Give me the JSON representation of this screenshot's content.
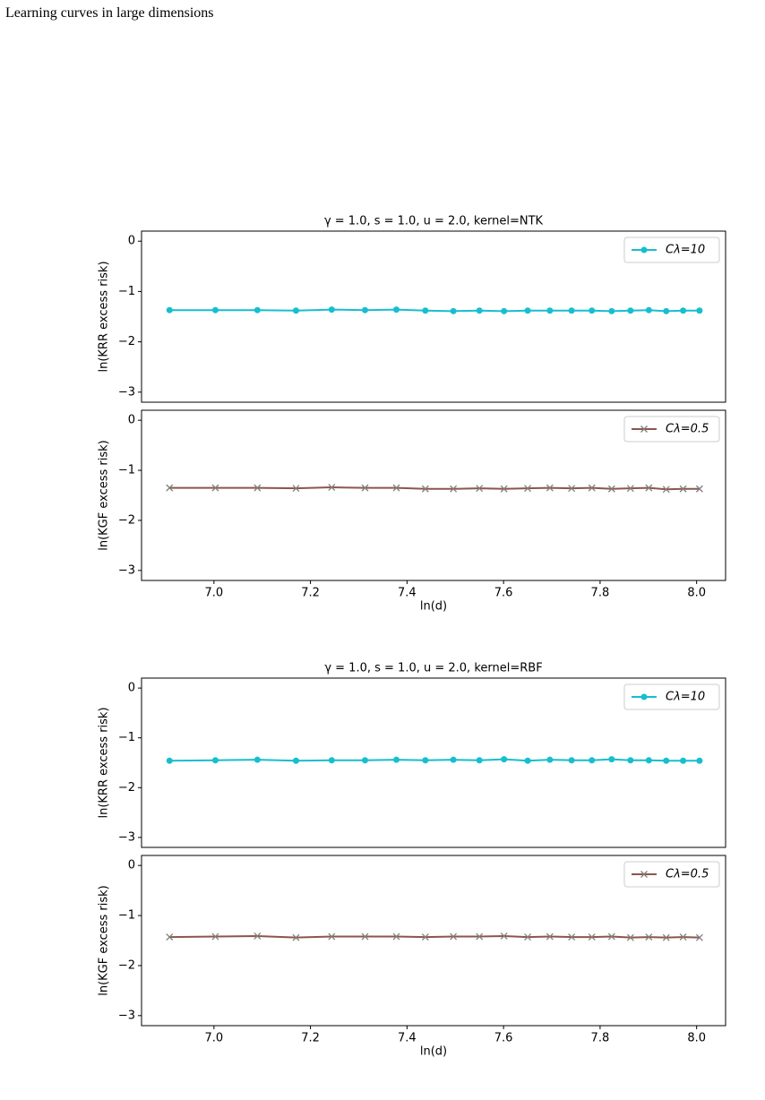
{
  "header": {
    "title": "Learning curves in large dimensions"
  },
  "chart_data": [
    {
      "type": "line",
      "title": "γ = 1.0, s = 1.0, u = 2.0, kernel=NTK",
      "ylabel": "ln(KRR excess risk)",
      "x": [
        6.908,
        7.003,
        7.09,
        7.17,
        7.244,
        7.313,
        7.378,
        7.438,
        7.496,
        7.55,
        7.601,
        7.65,
        7.696,
        7.741,
        7.783,
        7.824,
        7.863,
        7.901,
        7.937,
        7.972,
        8.006
      ],
      "series": [
        {
          "name": "Cλ=10",
          "color": "#17becf",
          "marker": "o",
          "values": [
            -1.37,
            -1.37,
            -1.37,
            -1.38,
            -1.36,
            -1.37,
            -1.36,
            -1.38,
            -1.39,
            -1.38,
            -1.39,
            -1.38,
            -1.38,
            -1.38,
            -1.38,
            -1.39,
            -1.38,
            -1.37,
            -1.39,
            -1.38,
            -1.38
          ]
        }
      ],
      "xlim": [
        6.85,
        8.06
      ],
      "ylim": [
        -3.2,
        0.2
      ],
      "yticks": [
        {
          "value": 0,
          "label": "0"
        },
        {
          "value": -1,
          "label": "−1"
        },
        {
          "value": -2,
          "label": "−2"
        },
        {
          "value": -3,
          "label": "−3"
        }
      ],
      "legend": "upper right"
    },
    {
      "type": "line",
      "ylabel": "ln(KGF excess risk)",
      "xlabel": "ln(d)",
      "x": [
        6.908,
        7.003,
        7.09,
        7.17,
        7.244,
        7.313,
        7.378,
        7.438,
        7.496,
        7.55,
        7.601,
        7.65,
        7.696,
        7.741,
        7.783,
        7.824,
        7.863,
        7.901,
        7.937,
        7.972,
        8.006
      ],
      "series": [
        {
          "name": "Cλ=0.5",
          "color": "#8c564b",
          "marker": "x",
          "marker_color": "#7f7f7f",
          "values": [
            -1.35,
            -1.35,
            -1.35,
            -1.36,
            -1.34,
            -1.35,
            -1.35,
            -1.37,
            -1.37,
            -1.36,
            -1.37,
            -1.36,
            -1.35,
            -1.36,
            -1.35,
            -1.37,
            -1.36,
            -1.35,
            -1.38,
            -1.37,
            -1.37
          ]
        }
      ],
      "xlim": [
        6.85,
        8.06
      ],
      "ylim": [
        -3.2,
        0.2
      ],
      "xticks": [
        {
          "value": 7,
          "label": "7.0"
        },
        7.2,
        7.4,
        7.6,
        7.8,
        {
          "value": 8,
          "label": "8.0"
        }
      ],
      "yticks": [
        {
          "value": 0,
          "label": "0"
        },
        {
          "value": -1,
          "label": "−1"
        },
        {
          "value": -2,
          "label": "−2"
        },
        {
          "value": -3,
          "label": "−3"
        }
      ],
      "legend": "upper right"
    },
    {
      "type": "line",
      "title": "γ = 1.0, s = 1.0, u = 2.0, kernel=RBF",
      "ylabel": "ln(KRR excess risk)",
      "x": [
        6.908,
        7.003,
        7.09,
        7.17,
        7.244,
        7.313,
        7.378,
        7.438,
        7.496,
        7.55,
        7.601,
        7.65,
        7.696,
        7.741,
        7.783,
        7.824,
        7.863,
        7.901,
        7.937,
        7.972,
        8.006
      ],
      "series": [
        {
          "name": "Cλ=10",
          "color": "#17becf",
          "marker": "o",
          "values": [
            -1.46,
            -1.45,
            -1.44,
            -1.46,
            -1.45,
            -1.45,
            -1.44,
            -1.45,
            -1.44,
            -1.45,
            -1.43,
            -1.46,
            -1.44,
            -1.45,
            -1.45,
            -1.43,
            -1.45,
            -1.45,
            -1.46,
            -1.46,
            -1.46
          ]
        }
      ],
      "xlim": [
        6.85,
        8.06
      ],
      "ylim": [
        -3.2,
        0.2
      ],
      "yticks": [
        {
          "value": 0,
          "label": "0"
        },
        {
          "value": -1,
          "label": "−1"
        },
        {
          "value": -2,
          "label": "−2"
        },
        {
          "value": -3,
          "label": "−3"
        }
      ],
      "legend": "upper right"
    },
    {
      "type": "line",
      "ylabel": "ln(KGF excess risk)",
      "xlabel": "ln(d)",
      "x": [
        6.908,
        7.003,
        7.09,
        7.17,
        7.244,
        7.313,
        7.378,
        7.438,
        7.496,
        7.55,
        7.601,
        7.65,
        7.696,
        7.741,
        7.783,
        7.824,
        7.863,
        7.901,
        7.937,
        7.972,
        8.006
      ],
      "series": [
        {
          "name": "Cλ=0.5",
          "color": "#8c564b",
          "marker": "x",
          "marker_color": "#7f7f7f",
          "values": [
            -1.43,
            -1.42,
            -1.41,
            -1.44,
            -1.42,
            -1.42,
            -1.42,
            -1.43,
            -1.42,
            -1.42,
            -1.41,
            -1.43,
            -1.42,
            -1.43,
            -1.43,
            -1.42,
            -1.44,
            -1.43,
            -1.44,
            -1.43,
            -1.44
          ]
        }
      ],
      "xlim": [
        6.85,
        8.06
      ],
      "ylim": [
        -3.2,
        0.2
      ],
      "xticks": [
        {
          "value": 7,
          "label": "7.0"
        },
        7.2,
        7.4,
        7.6,
        7.8,
        {
          "value": 8,
          "label": "8.0"
        }
      ],
      "yticks": [
        {
          "value": 0,
          "label": "0"
        },
        {
          "value": -1,
          "label": "−1"
        },
        {
          "value": -2,
          "label": "−2"
        },
        {
          "value": -3,
          "label": "−3"
        }
      ],
      "legend": "upper right"
    }
  ]
}
